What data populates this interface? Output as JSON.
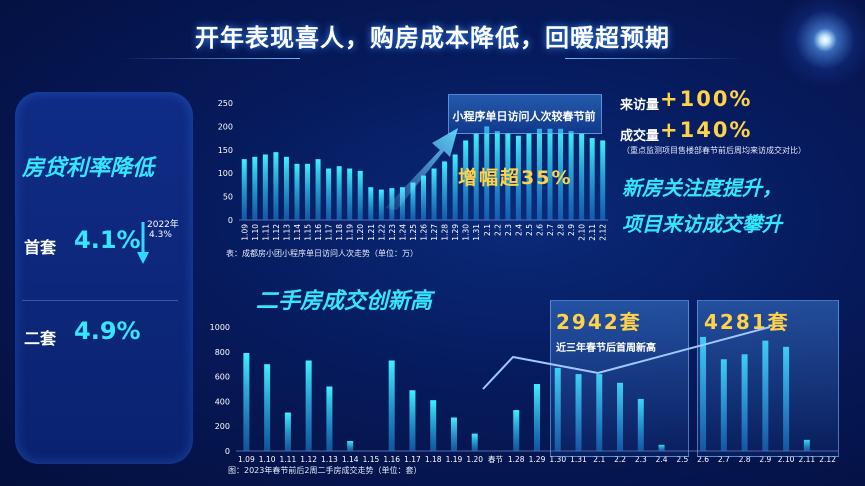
{
  "title": "开年表现喜人，购房成本降低，回暖超预期",
  "left_panel": {
    "heading": "房贷利率降低",
    "first": {
      "label": "首套",
      "value": "4.1%",
      "prev_year": "2022年",
      "prev_value": "4.3%"
    },
    "second": {
      "label": "二套",
      "value": "4.9%"
    }
  },
  "top_callout": {
    "box": "小程序单日访问人次较春节前",
    "increase": "增幅超35%"
  },
  "right_stats": {
    "visits_label": "来访量",
    "visits_value": "+100%",
    "deals_label": "成交量",
    "deals_value": "+140%",
    "note": "（重点监测项目售楼部春节前后周均来访成交对比）",
    "slogan1": "新房关注度提升，",
    "slogan2": "项目来访成交攀升"
  },
  "second_heading": "二手房成交创新高",
  "callout1": {
    "value": "2942套",
    "sub": "近三年春节后首周新高"
  },
  "callout2": {
    "value": "4281套"
  },
  "chart_data": [
    {
      "type": "bar",
      "caption": "表：成都房小团小程序单日访问人次走势（单位：万）",
      "categories": [
        "1.09",
        "1.10",
        "1.11",
        "1.12",
        "1.13",
        "1.14",
        "1.15",
        "1.16",
        "1.17",
        "1.18",
        "1.19",
        "1.20",
        "1.21",
        "1.22",
        "1.23",
        "1.24",
        "1.25",
        "1.26",
        "1.27",
        "1.28",
        "1.29",
        "1.30",
        "1.31",
        "2.1",
        "2.2",
        "2.3",
        "2.4",
        "2.5",
        "2.6",
        "2.7",
        "2.8",
        "2.9",
        "2.10",
        "2.11",
        "2.12"
      ],
      "values": [
        130,
        135,
        140,
        145,
        135,
        120,
        120,
        130,
        110,
        115,
        110,
        105,
        70,
        65,
        68,
        70,
        80,
        95,
        110,
        125,
        140,
        170,
        185,
        200,
        190,
        185,
        180,
        185,
        195,
        195,
        195,
        190,
        185,
        175,
        170
      ],
      "ylim": [
        0,
        250
      ],
      "yticks": [
        0,
        50,
        100,
        150,
        200,
        250
      ]
    },
    {
      "type": "bar",
      "caption": "图：2023年春节前后2周二手房成交走势（单位：套）",
      "categories": [
        "1.09",
        "1.10",
        "1.11",
        "1.12",
        "1.13",
        "1.14",
        "1.15",
        "1.16",
        "1.17",
        "1.18",
        "1.19",
        "1.20",
        "春节",
        "1.28",
        "1.29",
        "1.30",
        "1.31",
        "2.1",
        "2.2",
        "2.3",
        "2.4",
        "2.5",
        "2.6",
        "2.7",
        "2.8",
        "2.9",
        "2.10",
        "2.11",
        "2.12"
      ],
      "values": [
        790,
        700,
        310,
        730,
        520,
        80,
        0,
        730,
        490,
        410,
        270,
        140,
        0,
        330,
        540,
        670,
        620,
        620,
        550,
        420,
        50,
        0,
        920,
        740,
        780,
        890,
        840,
        90,
        0
      ],
      "ylim": [
        0,
        1000
      ],
      "yticks": [
        0,
        200,
        400,
        600,
        800,
        1000
      ]
    }
  ]
}
